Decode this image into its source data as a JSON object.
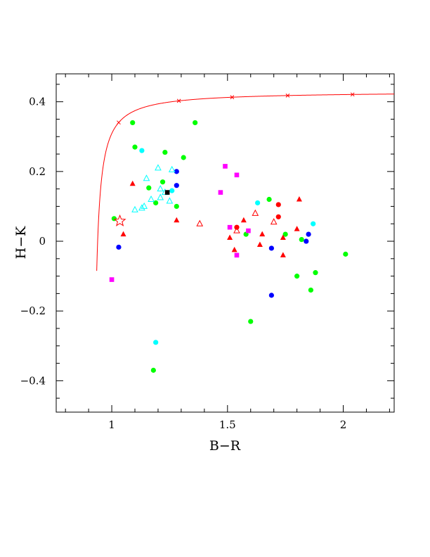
{
  "chart_data": {
    "type": "scatter",
    "xlabel": "B−R",
    "ylabel": "H−K",
    "xlim": [
      0.76,
      2.22
    ],
    "ylim": [
      -0.49,
      0.48
    ],
    "x_ticks": [
      1,
      1.5,
      2
    ],
    "x_tick_labels": [
      "1",
      "1.5",
      "2"
    ],
    "y_ticks": [
      -0.4,
      -0.2,
      0,
      0.2,
      0.4
    ],
    "y_tick_labels": [
      "−0.4",
      "−0.2",
      "0",
      "0.2",
      "0.4"
    ],
    "grid": false,
    "curve": {
      "color": "#ff0000",
      "asymptote_y": 0.43,
      "coefficient": 0.0103,
      "x_pole": 0.915,
      "marker_x": [
        1.03,
        1.29,
        1.52,
        1.76,
        2.04
      ]
    },
    "star_marker": {
      "x": 1.035,
      "y": 0.058,
      "color": "#ff0000"
    },
    "series": [
      {
        "marker": "filled-circle",
        "color": "#00ff00",
        "points": [
          [
            1.09,
            0.34
          ],
          [
            1.1,
            0.27
          ],
          [
            1.01,
            0.065
          ],
          [
            1.16,
            0.153
          ],
          [
            1.19,
            0.11
          ],
          [
            1.22,
            0.17
          ],
          [
            1.23,
            0.255
          ],
          [
            1.28,
            0.1
          ],
          [
            1.31,
            0.24
          ],
          [
            1.36,
            0.34
          ],
          [
            1.58,
            0.02
          ],
          [
            1.68,
            0.12
          ],
          [
            1.75,
            0.02
          ],
          [
            1.82,
            0.005
          ],
          [
            1.8,
            -0.1
          ],
          [
            1.88,
            -0.09
          ],
          [
            1.86,
            -0.14
          ],
          [
            2.01,
            -0.037
          ],
          [
            1.6,
            -0.23
          ],
          [
            1.18,
            -0.37
          ]
        ]
      },
      {
        "marker": "filled-circle",
        "color": "#00ffff",
        "points": [
          [
            1.13,
            0.26
          ],
          [
            1.26,
            0.145
          ],
          [
            1.63,
            0.11
          ],
          [
            1.87,
            0.05
          ],
          [
            1.19,
            -0.29
          ]
        ]
      },
      {
        "marker": "filled-circle",
        "color": "#0000ff",
        "points": [
          [
            1.28,
            0.2
          ],
          [
            1.28,
            0.16
          ],
          [
            1.03,
            -0.017
          ],
          [
            1.69,
            -0.02
          ],
          [
            1.85,
            0.02
          ],
          [
            1.84,
            0.0
          ],
          [
            1.69,
            -0.155
          ]
        ]
      },
      {
        "marker": "filled-circle",
        "color": "#ff0000",
        "points": [
          [
            1.72,
            0.105
          ],
          [
            1.72,
            0.07
          ],
          [
            1.54,
            0.04
          ]
        ]
      },
      {
        "marker": "filled-triangle",
        "color": "#ff0000",
        "points": [
          [
            1.09,
            0.165
          ],
          [
            1.05,
            0.02
          ],
          [
            1.28,
            0.06
          ],
          [
            1.51,
            0.01
          ],
          [
            1.53,
            -0.025
          ],
          [
            1.57,
            0.06
          ],
          [
            1.64,
            -0.01
          ],
          [
            1.65,
            0.02
          ],
          [
            1.74,
            0.01
          ],
          [
            1.74,
            -0.04
          ],
          [
            1.8,
            0.035
          ],
          [
            1.81,
            0.12
          ]
        ]
      },
      {
        "marker": "open-triangle",
        "color": "#ff0000",
        "points": [
          [
            1.38,
            0.05
          ],
          [
            1.62,
            0.08
          ],
          [
            1.7,
            0.055
          ],
          [
            1.54,
            0.03
          ]
        ]
      },
      {
        "marker": "open-triangle",
        "color": "#00ffff",
        "points": [
          [
            1.1,
            0.09
          ],
          [
            1.13,
            0.095
          ],
          [
            1.14,
            0.1
          ],
          [
            1.15,
            0.18
          ],
          [
            1.17,
            0.12
          ],
          [
            1.2,
            0.21
          ],
          [
            1.21,
            0.125
          ],
          [
            1.21,
            0.15
          ],
          [
            1.23,
            0.14
          ],
          [
            1.25,
            0.115
          ],
          [
            1.26,
            0.205
          ]
        ]
      },
      {
        "marker": "filled-square",
        "color": "#ff00ff",
        "points": [
          [
            1.0,
            -0.11
          ],
          [
            1.47,
            0.14
          ],
          [
            1.49,
            0.215
          ],
          [
            1.51,
            0.04
          ],
          [
            1.54,
            0.19
          ],
          [
            1.54,
            -0.04
          ],
          [
            1.59,
            0.03
          ]
        ]
      },
      {
        "marker": "filled-square",
        "color": "#000000",
        "points": [
          [
            1.24,
            0.14
          ]
        ]
      }
    ]
  }
}
